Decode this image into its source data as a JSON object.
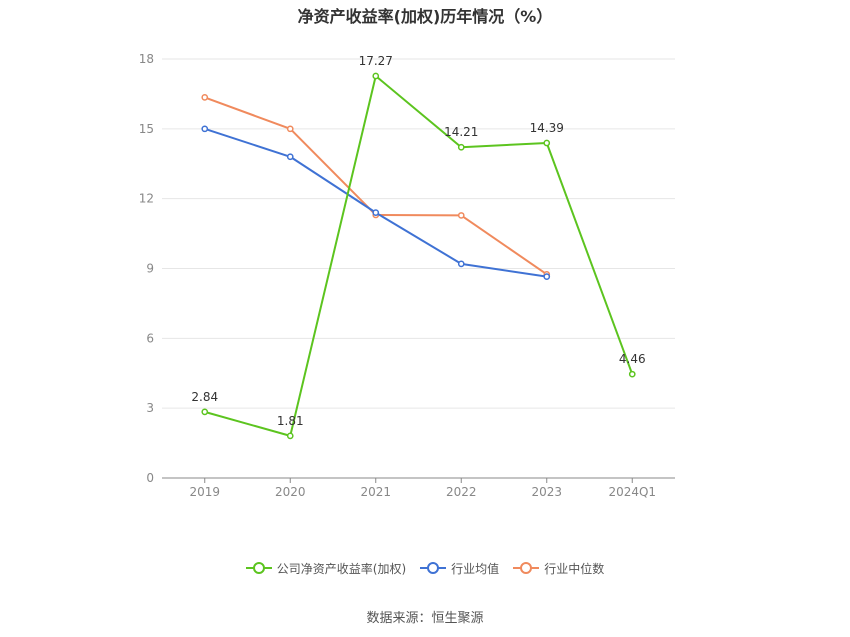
{
  "title": "净资产收益率(加权)历年情况（%）",
  "source": "数据来源：恒生聚源",
  "colors": {
    "company": "#5cc41f",
    "industry_avg": "#3f72d4",
    "industry_median": "#f08a5d",
    "grid": "#e6e6e6",
    "axis": "#888888",
    "tick_text": "#888888",
    "label_text": "#333333"
  },
  "chart_data": {
    "type": "line",
    "title": "净资产收益率(加权)历年情况（%）",
    "categories": [
      "2019",
      "2020",
      "2021",
      "2022",
      "2023",
      "2024Q1"
    ],
    "ylim": [
      0,
      18
    ],
    "yticks": [
      0,
      3,
      6,
      9,
      12,
      15,
      18
    ],
    "grid": true,
    "legend_position": "bottom",
    "series": [
      {
        "name": "公司净资产收益率(加权)",
        "key": "company",
        "values": [
          2.84,
          1.81,
          17.27,
          14.21,
          14.39,
          4.46
        ],
        "labels": [
          "2.84",
          "1.81",
          "17.27",
          "14.21",
          "14.39",
          "4.46"
        ]
      },
      {
        "name": "行业均值",
        "key": "industry_avg",
        "values": [
          15.0,
          13.8,
          11.4,
          9.2,
          8.65,
          null
        ]
      },
      {
        "name": "行业中位数",
        "key": "industry_median",
        "values": [
          16.35,
          15.0,
          11.3,
          11.28,
          8.75,
          null
        ]
      }
    ]
  }
}
